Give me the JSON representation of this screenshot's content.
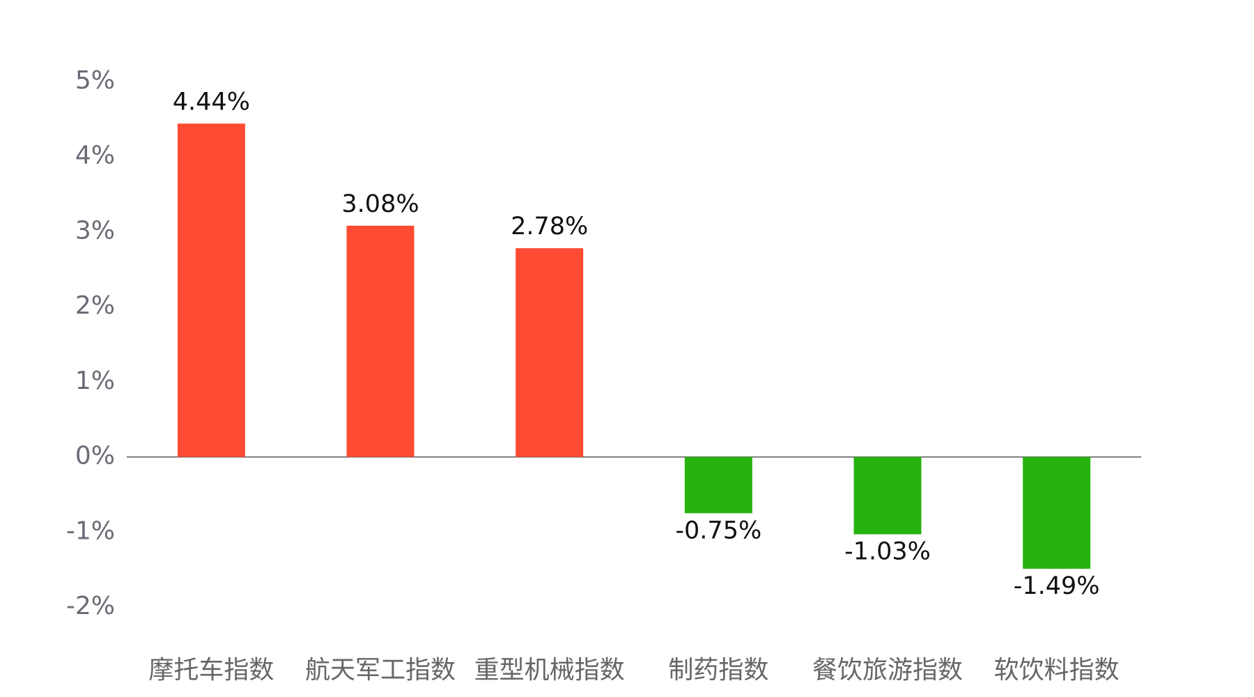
{
  "chart_data": {
    "type": "bar",
    "categories": [
      "摩托车指数",
      "航天军工指数",
      "重型机械指数",
      "制药指数",
      "餐饮旅游指数",
      "软饮料指数"
    ],
    "values": [
      4.44,
      3.08,
      2.78,
      -0.75,
      -1.03,
      -1.49
    ],
    "value_labels": [
      "4.44%",
      "3.08%",
      "2.78%",
      "-0.75%",
      "-1.03%",
      "-1.49%"
    ],
    "colors": [
      "#ff4b33",
      "#ff4b33",
      "#ff4b33",
      "#27b30f",
      "#27b30f",
      "#27b30f"
    ],
    "ylim": [
      -2,
      5
    ],
    "yticks": [
      {
        "value": -2,
        "label": "-2%"
      },
      {
        "value": -1,
        "label": "-1%"
      },
      {
        "value": 0,
        "label": "0%"
      },
      {
        "value": 1,
        "label": "1%"
      },
      {
        "value": 2,
        "label": "2%"
      },
      {
        "value": 3,
        "label": "3%"
      },
      {
        "value": 4,
        "label": "4%"
      },
      {
        "value": 5,
        "label": "5%"
      }
    ],
    "grid": false
  }
}
